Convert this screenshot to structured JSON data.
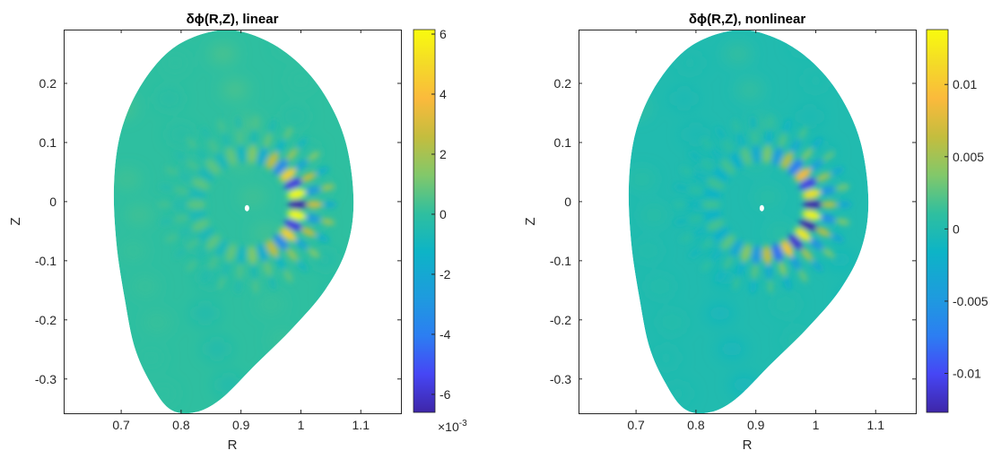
{
  "chart_data": [
    {
      "type": "heatmap",
      "title": "δϕ(R,Z), linear",
      "xlabel": "R",
      "ylabel": "Z",
      "xlim": [
        0.604,
        1.167
      ],
      "ylim": [
        -0.358,
        0.291
      ],
      "xticks": [
        0.7,
        0.8,
        0.9,
        1,
        1.1
      ],
      "xtick_labels": [
        "0.7",
        "0.8",
        "0.9",
        "1",
        "1.1"
      ],
      "yticks": [
        0.2,
        0.1,
        0,
        -0.1,
        -0.2,
        -0.3
      ],
      "ytick_labels": [
        "0.2",
        "0.1",
        "0",
        "-0.1",
        "-0.2",
        "-0.3"
      ],
      "colorbar": {
        "range": [
          -6.6,
          6.15
        ],
        "ticks": [
          6,
          4,
          2,
          0,
          -2,
          -4,
          -6
        ],
        "tick_labels": [
          "6",
          "4",
          "2",
          "0",
          "-2",
          "-4",
          "-6"
        ],
        "exponent_label": "×10",
        "exponent": "-3",
        "colormap": "parula"
      },
      "mode": {
        "axis_R": 0.91,
        "axis_Z": -0.005,
        "radius": 0.085,
        "n_blobs": 30,
        "peak": 6.0,
        "peak_angle_deg": 0,
        "spread_deg": 55
      }
    },
    {
      "type": "heatmap",
      "title": "δϕ(R,Z), nonlinear",
      "xlabel": "R",
      "ylabel": "Z",
      "xlim": [
        0.604,
        1.167
      ],
      "ylim": [
        -0.358,
        0.291
      ],
      "xticks": [
        0.7,
        0.8,
        0.9,
        1,
        1.1
      ],
      "xtick_labels": [
        "0.7",
        "0.8",
        "0.9",
        "1",
        "1.1"
      ],
      "yticks": [
        0.2,
        0.1,
        0,
        -0.1,
        -0.2,
        -0.3
      ],
      "ytick_labels": [
        "0.2",
        "0.1",
        "0",
        "-0.1",
        "-0.2",
        "-0.3"
      ],
      "colorbar": {
        "range": [
          -0.0127,
          0.0138
        ],
        "ticks": [
          0.01,
          0.005,
          0,
          -0.005,
          -0.01
        ],
        "tick_labels": [
          "0.01",
          "0.005",
          "0",
          "-0.005",
          "-0.01"
        ],
        "colormap": "parula"
      },
      "mode": {
        "axis_R": 0.91,
        "axis_Z": -0.005,
        "radius": 0.085,
        "n_blobs": 30,
        "peak": 0.012,
        "peak_angle_deg": -15,
        "spread_deg": 75
      }
    }
  ],
  "boundary": [
    [
      0.865,
      0.29
    ],
    [
      0.93,
      0.278
    ],
    [
      0.99,
      0.24
    ],
    [
      1.04,
      0.18
    ],
    [
      1.075,
      0.1
    ],
    [
      1.088,
      0.0
    ],
    [
      1.076,
      -0.08
    ],
    [
      1.04,
      -0.15
    ],
    [
      0.985,
      -0.215
    ],
    [
      0.925,
      -0.275
    ],
    [
      0.865,
      -0.335
    ],
    [
      0.82,
      -0.357
    ],
    [
      0.78,
      -0.35
    ],
    [
      0.748,
      -0.305
    ],
    [
      0.722,
      -0.245
    ],
    [
      0.706,
      -0.165
    ],
    [
      0.692,
      -0.07
    ],
    [
      0.688,
      0.03
    ],
    [
      0.7,
      0.12
    ],
    [
      0.735,
      0.2
    ],
    [
      0.79,
      0.262
    ]
  ]
}
